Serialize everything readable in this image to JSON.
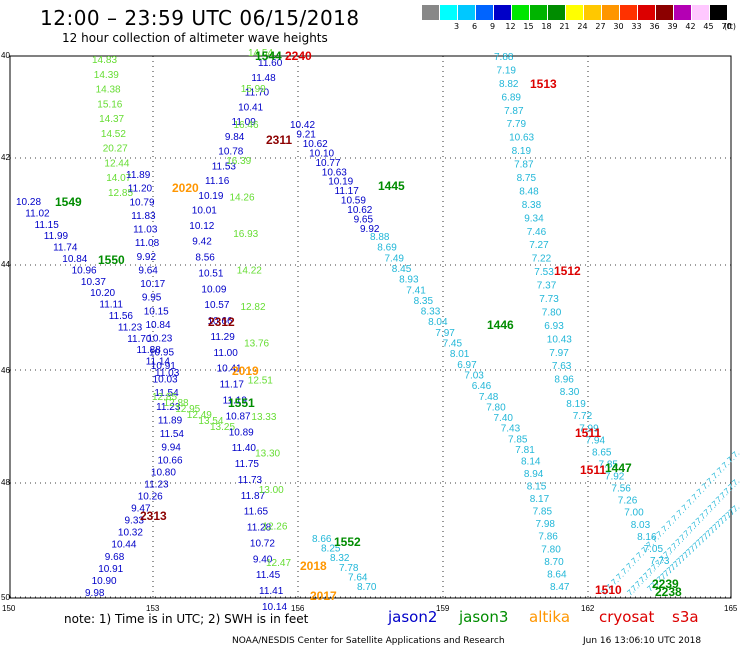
{
  "header": {
    "title": "12:00 – 23:59 UTC 06/15/2018",
    "subtitle": "12 hour collection of altimeter wave heights"
  },
  "color_scale": {
    "unit": "(ft)",
    "items": [
      {
        "label": "",
        "color": "#888888"
      },
      {
        "label": "3",
        "color": "#00ffff"
      },
      {
        "label": "6",
        "color": "#00c8ff"
      },
      {
        "label": "9",
        "color": "#0064ff"
      },
      {
        "label": "12",
        "color": "#0000c8"
      },
      {
        "label": "15",
        "color": "#00e600"
      },
      {
        "label": "18",
        "color": "#00b400"
      },
      {
        "label": "21",
        "color": "#008c00"
      },
      {
        "label": "24",
        "color": "#ffff00"
      },
      {
        "label": "27",
        "color": "#ffc800"
      },
      {
        "label": "30",
        "color": "#ff9600"
      },
      {
        "label": "33",
        "color": "#ff3200"
      },
      {
        "label": "36",
        "color": "#dc0000"
      },
      {
        "label": "39",
        "color": "#8c0000"
      },
      {
        "label": "42",
        "color": "#b400b4"
      },
      {
        "label": "45",
        "color": "#ffc8ff"
      },
      {
        "label": "70",
        "color": "#000000"
      }
    ]
  },
  "axes": {
    "y_labels": [
      "40",
      "42",
      "44",
      "46",
      "48",
      "50"
    ],
    "x_labels": [
      "150",
      "153",
      "156",
      "159",
      "162",
      "165"
    ],
    "grid": "dotted"
  },
  "colors": {
    "jason2": "#0000c8",
    "jason3": "#008c00",
    "altika": "#ff9600",
    "cryosat": "#dc0000",
    "s3a": "#dc0000",
    "cyan": "#22b7d8",
    "light_green": "#66dd33"
  },
  "time_labels": [
    {
      "text": "1544",
      "color": "#008c00"
    },
    {
      "text": "2240",
      "color": "#dc0000"
    },
    {
      "text": "1513",
      "color": "#dc0000"
    },
    {
      "text": "2311",
      "color": "#8c0000"
    },
    {
      "text": "1445",
      "color": "#008c00"
    },
    {
      "text": "2020",
      "color": "#ff9600"
    },
    {
      "text": "1549",
      "color": "#008c00"
    },
    {
      "text": "1550",
      "color": "#008c00"
    },
    {
      "text": "1512",
      "color": "#dc0000"
    },
    {
      "text": "2312",
      "color": "#8c0000"
    },
    {
      "text": "1446",
      "color": "#008c00"
    },
    {
      "text": "2019",
      "color": "#ff9600"
    },
    {
      "text": "1551",
      "color": "#008c00"
    },
    {
      "text": "1511",
      "color": "#dc0000"
    },
    {
      "text": "1511",
      "color": "#dc0000"
    },
    {
      "text": "1447",
      "color": "#008c00"
    },
    {
      "text": "2313",
      "color": "#8c0000"
    },
    {
      "text": "1552",
      "color": "#008c00"
    },
    {
      "text": "2018",
      "color": "#ff9600"
    },
    {
      "text": "2017",
      "color": "#ff9600"
    },
    {
      "text": "1510",
      "color": "#dc0000"
    },
    {
      "text": "2239",
      "color": "#008c00"
    },
    {
      "text": "2238",
      "color": "#008c00"
    }
  ],
  "tracks": [
    {
      "color": "#66dd33",
      "values": [
        "14.83",
        "14.39",
        "14.38",
        "15.16",
        "14.37",
        "14.52",
        "20.27",
        "12.44",
        "14.07",
        "12.85"
      ]
    },
    {
      "color": "#0000c8",
      "values": [
        "11.89",
        "11.20",
        "10.79",
        "11.83",
        "11.03",
        "11.08",
        "9.92",
        "9.64",
        "10.17",
        "9.95",
        "10.15",
        "10.84",
        "10.23",
        "10.95",
        "10.91",
        "10.03",
        "11.54",
        "11.23",
        "11.89",
        "11.54",
        "9.94",
        "10.66",
        "10.80",
        "11.23",
        "10.26",
        "9.47",
        "9.33",
        "10.32",
        "10.44",
        "9.68",
        "10.91",
        "10.90",
        "9.98"
      ]
    },
    {
      "color": "#0000c8",
      "values": [
        "10.28",
        "11.02",
        "11.15",
        "11.99",
        "11.74",
        "10.84",
        "10.96",
        "10.37",
        "10.20",
        "11.11",
        "11.56",
        "11.23",
        "11.70",
        "11.88",
        "11.14",
        "11.03"
      ]
    },
    {
      "color": "#66dd33",
      "values": [
        "12.85",
        "12.88",
        "12.95",
        "12.49",
        "13.54",
        "13.25"
      ]
    },
    {
      "color": "#0000c8",
      "values": [
        "11.60",
        "11.48",
        "11.70",
        "10.41",
        "11.09",
        "9.84",
        "10.78",
        "11.53",
        "11.16",
        "10.19",
        "10.01",
        "10.12",
        "9.42",
        "8.56",
        "10.51",
        "10.09",
        "10.57",
        "10.66",
        "11.29",
        "11.00",
        "10.41",
        "11.17",
        "11.19",
        "10.87",
        "10.89",
        "11.40",
        "11.75",
        "11.73",
        "11.87",
        "11.65",
        "11.28",
        "10.72",
        "9.40",
        "11.45",
        "11.41",
        "10.14"
      ]
    },
    {
      "color": "#66dd33",
      "values": [
        "14.54",
        "15.99",
        "16.46",
        "16.39",
        "14.26",
        "16.93",
        "14.22",
        "12.82",
        "13.76",
        "12.51",
        "13.33",
        "13.30",
        "13.00",
        "12.26",
        "12.47"
      ]
    },
    {
      "color": "#0000c8",
      "values": [
        "10.42",
        "9.21",
        "10.62",
        "10.10",
        "10.77",
        "10.63",
        "10.19",
        "11.17",
        "10.59",
        "10.62",
        "9.65",
        "9.92"
      ]
    },
    {
      "color": "#22b7d8",
      "values": [
        "8.88",
        "8.69",
        "7.49",
        "8.45",
        "8.93",
        "7.41",
        "8.35",
        "8.33",
        "8.04",
        "7.97",
        "7.45",
        "8.01",
        "6.97",
        "7.03",
        "6.46",
        "7.48",
        "7.80",
        "7.40",
        "7.43",
        "7.85",
        "7.81",
        "8.14",
        "8.94",
        "8.15",
        "8.17",
        "7.85",
        "7.98",
        "7.86",
        "7.80",
        "8.70",
        "8.64",
        "8.47"
      ]
    },
    {
      "color": "#22b7d8",
      "values": [
        "7.88",
        "7.19",
        "8.82",
        "6.89",
        "7.87",
        "7.79",
        "10.63",
        "8.19",
        "7.87",
        "8.75",
        "8.48",
        "8.38",
        "9.34",
        "7.46",
        "7.27",
        "7.22",
        "7.53",
        "7.37",
        "7.73",
        "7.80",
        "6.93",
        "10.43",
        "7.97",
        "7.63",
        "8.96",
        "8.30",
        "8.19",
        "7.72",
        "7.99",
        "7.94",
        "8.65",
        "7.85",
        "7.92",
        "7.56",
        "7.26",
        "7.00",
        "8.03",
        "8.16",
        "7.05",
        "7.73"
      ]
    },
    {
      "color": "#22b7d8",
      "values": [
        "8.66",
        "8.25",
        "8.32",
        "7.78",
        "7.64",
        "8.70"
      ]
    }
  ],
  "legend": {
    "jason2": "jason2",
    "jason3": "jason3",
    "altika": "altika",
    "cryosat": "cryosat",
    "s3a": "s3a"
  },
  "note": "note: 1) Time is in UTC; 2) SWH is in feet",
  "footer": {
    "credit": "NOAA/NESDIS Center for Satellite Applications and Research",
    "timestamp": "Jun 16 13:06:10 UTC 2018"
  }
}
